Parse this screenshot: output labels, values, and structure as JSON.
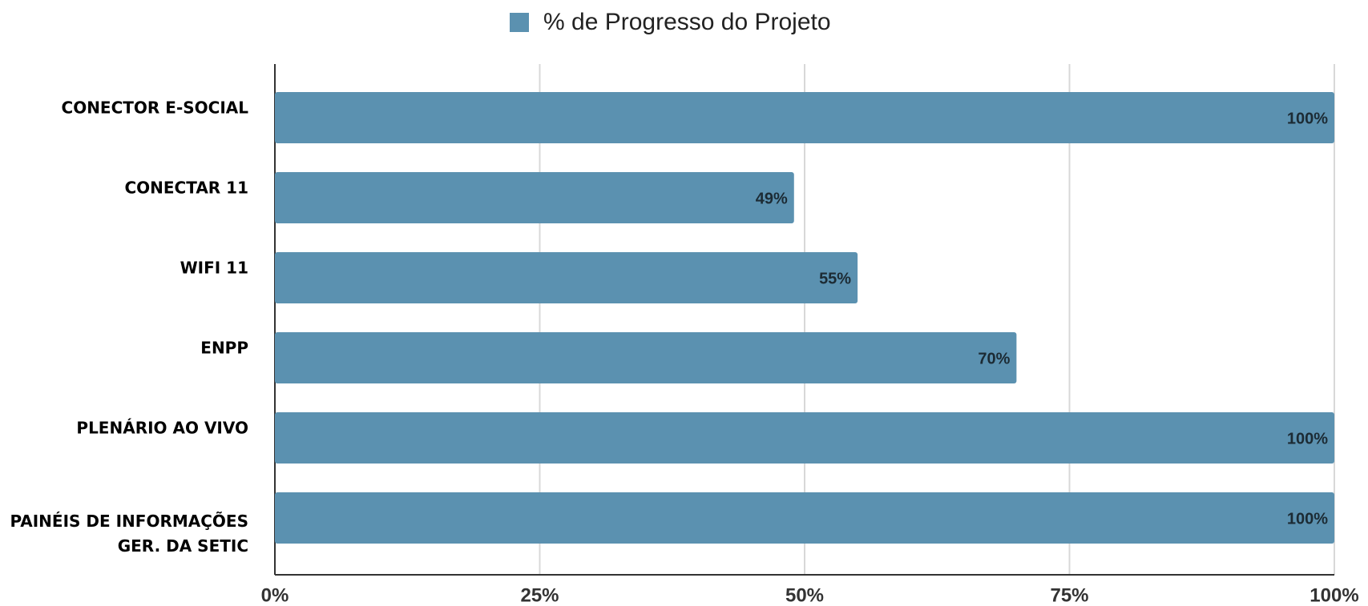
{
  "chart_data": {
    "type": "bar",
    "orientation": "horizontal",
    "categories": [
      "CONECTOR E-SOCIAL",
      "CONECTAR 11",
      "WIFI 11",
      "ENPP",
      "PLENÁRIO AO VIVO",
      "PAINÉIS DE INFORMAÇÕES\nGER. DA SETIC"
    ],
    "series": [
      {
        "name": "% de Progresso do Projeto",
        "color": "#5b91b0",
        "values": [
          100,
          49,
          55,
          70,
          100,
          100
        ],
        "value_labels": [
          "100%",
          "49%",
          "55%",
          "70%",
          "100%",
          "100%"
        ]
      }
    ],
    "xlim": [
      0,
      100
    ],
    "xticks": [
      {
        "value": 0,
        "label": "0%"
      },
      {
        "value": 25,
        "label": "25%"
      },
      {
        "value": 50,
        "label": "50%"
      },
      {
        "value": 75,
        "label": "75%"
      },
      {
        "value": 100,
        "label": "100%"
      }
    ],
    "grid": true,
    "legend": "top"
  }
}
